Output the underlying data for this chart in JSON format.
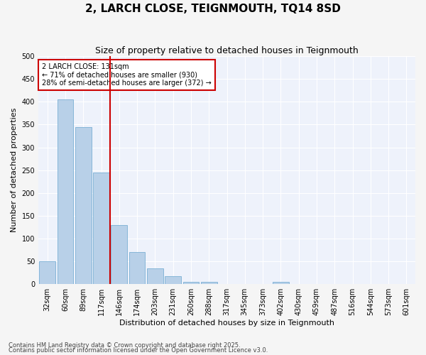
{
  "title": "2, LARCH CLOSE, TEIGNMOUTH, TQ14 8SD",
  "subtitle": "Size of property relative to detached houses in Teignmouth",
  "xlabel": "Distribution of detached houses by size in Teignmouth",
  "ylabel": "Number of detached properties",
  "categories": [
    "32sqm",
    "60sqm",
    "89sqm",
    "117sqm",
    "146sqm",
    "174sqm",
    "203sqm",
    "231sqm",
    "260sqm",
    "288sqm",
    "317sqm",
    "345sqm",
    "373sqm",
    "402sqm",
    "430sqm",
    "459sqm",
    "487sqm",
    "516sqm",
    "544sqm",
    "573sqm",
    "601sqm"
  ],
  "values": [
    50,
    405,
    345,
    245,
    130,
    70,
    35,
    18,
    5,
    5,
    0,
    0,
    0,
    5,
    0,
    0,
    0,
    0,
    0,
    0,
    0
  ],
  "bar_color": "#b8d0e8",
  "bar_edge_color": "#7aafd4",
  "background_color": "#eef2fb",
  "grid_color": "#ffffff",
  "vline_color": "#cc0000",
  "annotation_text": "2 LARCH CLOSE: 131sqm\n← 71% of detached houses are smaller (930)\n28% of semi-detached houses are larger (372) →",
  "annotation_box_facecolor": "#ffffff",
  "annotation_box_edgecolor": "#cc0000",
  "ylim": [
    0,
    500
  ],
  "yticks": [
    0,
    50,
    100,
    150,
    200,
    250,
    300,
    350,
    400,
    450,
    500
  ],
  "footnote1": "Contains HM Land Registry data © Crown copyright and database right 2025.",
  "footnote2": "Contains public sector information licensed under the Open Government Licence v3.0.",
  "title_fontsize": 11,
  "subtitle_fontsize": 9,
  "xlabel_fontsize": 8,
  "ylabel_fontsize": 8,
  "tick_fontsize": 7,
  "annotation_fontsize": 7,
  "footnote_fontsize": 6
}
